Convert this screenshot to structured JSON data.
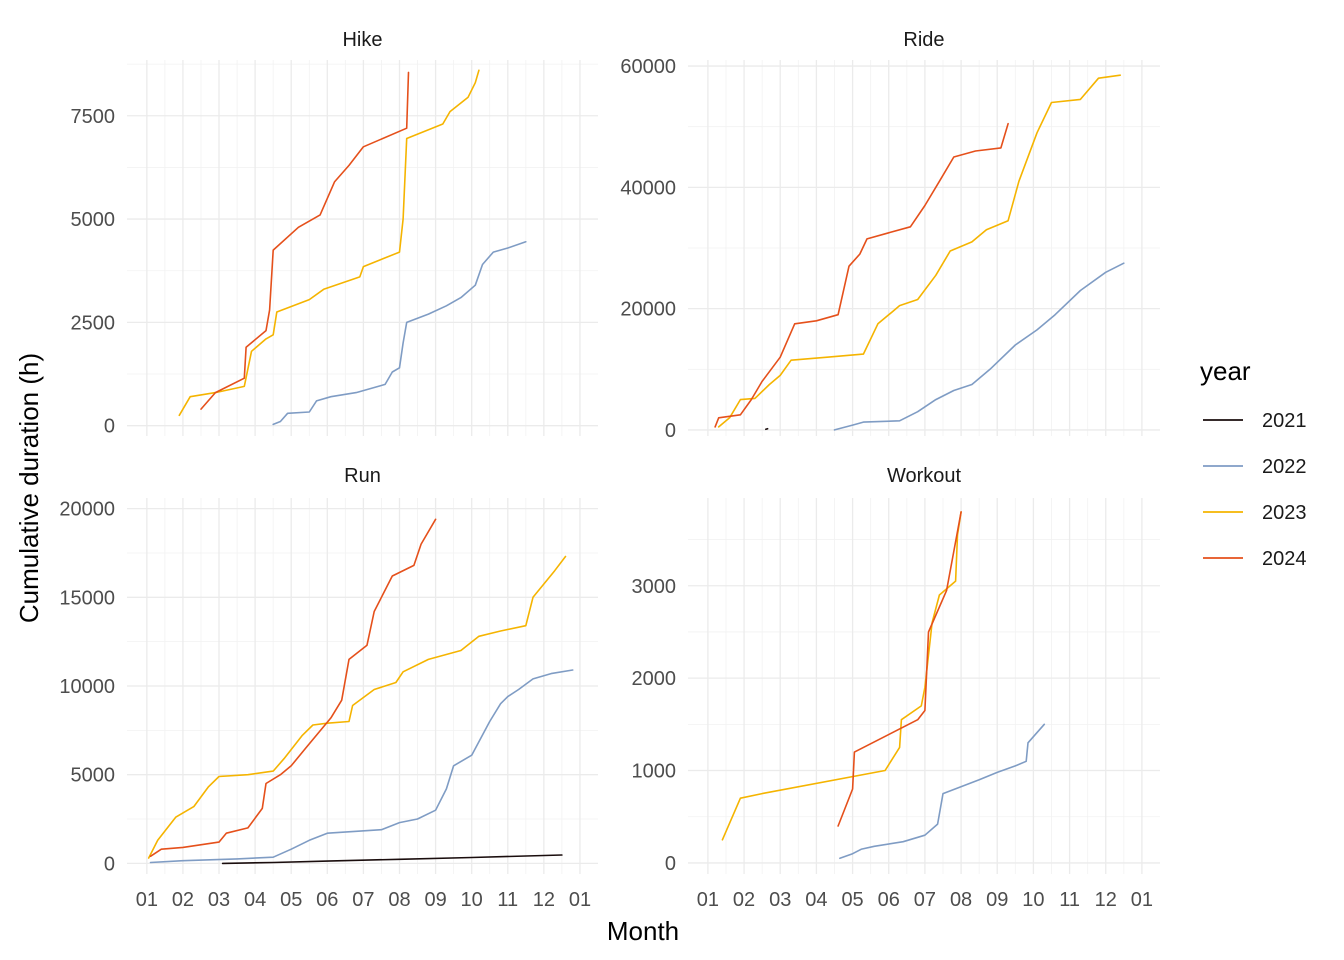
{
  "chart_data": {
    "type": "line",
    "xlabel": "Month",
    "ylabel": "Cumulative duration (h)",
    "x_ticks": [
      "01",
      "02",
      "03",
      "04",
      "05",
      "06",
      "07",
      "08",
      "09",
      "10",
      "11",
      "12",
      "01"
    ],
    "legend": {
      "title": "year",
      "position": "right",
      "items": [
        {
          "name": "2021",
          "color": "#1a0d0d"
        },
        {
          "name": "2022",
          "color": "#7f9cc4"
        },
        {
          "name": "2023",
          "color": "#f5b400"
        },
        {
          "name": "2024",
          "color": "#e5501b"
        }
      ]
    },
    "grid": true,
    "panels": [
      {
        "title": "Hike",
        "ylim": [
          -250,
          8850
        ],
        "y_ticks": [
          0,
          2500,
          5000,
          7500
        ],
        "series": [
          {
            "name": "2022",
            "points": [
              [
                3.5,
                30
              ],
              [
                3.7,
                100
              ],
              [
                3.9,
                300
              ],
              [
                4.5,
                330
              ],
              [
                4.7,
                600
              ],
              [
                5.1,
                700
              ],
              [
                5.8,
                800
              ],
              [
                6.6,
                1000
              ],
              [
                6.8,
                1300
              ],
              [
                7.0,
                1400
              ],
              [
                7.1,
                2000
              ],
              [
                7.2,
                2500
              ],
              [
                7.8,
                2700
              ],
              [
                8.3,
                2900
              ],
              [
                8.7,
                3100
              ],
              [
                9.1,
                3400
              ],
              [
                9.3,
                3900
              ],
              [
                9.6,
                4200
              ],
              [
                10.0,
                4300
              ],
              [
                10.5,
                4450
              ]
            ]
          },
          {
            "name": "2023",
            "points": [
              [
                0.9,
                250
              ],
              [
                1.2,
                700
              ],
              [
                1.9,
                800
              ],
              [
                2.7,
                950
              ],
              [
                2.9,
                1800
              ],
              [
                3.3,
                2100
              ],
              [
                3.5,
                2200
              ],
              [
                3.6,
                2750
              ],
              [
                4.5,
                3050
              ],
              [
                4.9,
                3300
              ],
              [
                5.9,
                3600
              ],
              [
                6.0,
                3850
              ],
              [
                7.0,
                4200
              ],
              [
                7.1,
                5000
              ],
              [
                7.2,
                6950
              ],
              [
                8.2,
                7300
              ],
              [
                8.4,
                7600
              ],
              [
                8.9,
                7950
              ],
              [
                9.1,
                8300
              ],
              [
                9.2,
                8600
              ]
            ]
          },
          {
            "name": "2024",
            "points": [
              [
                1.5,
                400
              ],
              [
                1.9,
                800
              ],
              [
                2.7,
                1150
              ],
              [
                2.75,
                1900
              ],
              [
                3.3,
                2300
              ],
              [
                3.4,
                2800
              ],
              [
                3.5,
                4250
              ],
              [
                4.2,
                4800
              ],
              [
                4.8,
                5100
              ],
              [
                5.2,
                5900
              ],
              [
                5.6,
                6300
              ],
              [
                6.0,
                6750
              ],
              [
                7.2,
                7200
              ],
              [
                7.25,
                8550
              ]
            ]
          }
        ]
      },
      {
        "title": "Ride",
        "ylim": [
          -1000,
          61000
        ],
        "y_ticks": [
          0,
          20000,
          40000,
          60000
        ],
        "series": [
          {
            "name": "2021",
            "points": [
              [
                1.6,
                100
              ],
              [
                1.65,
                200
              ]
            ]
          },
          {
            "name": "2022",
            "points": [
              [
                3.5,
                0
              ],
              [
                4.0,
                800
              ],
              [
                4.3,
                1300
              ],
              [
                5.3,
                1500
              ],
              [
                5.8,
                3000
              ],
              [
                6.3,
                5000
              ],
              [
                6.8,
                6500
              ],
              [
                7.3,
                7500
              ],
              [
                7.8,
                10000
              ],
              [
                8.5,
                14000
              ],
              [
                9.1,
                16500
              ],
              [
                9.6,
                19000
              ],
              [
                10.3,
                23000
              ],
              [
                11.0,
                26000
              ],
              [
                11.5,
                27500
              ]
            ]
          },
          {
            "name": "2023",
            "points": [
              [
                0.3,
                500
              ],
              [
                0.6,
                2000
              ],
              [
                0.9,
                5000
              ],
              [
                1.3,
                5200
              ],
              [
                1.7,
                7500
              ],
              [
                2.0,
                9000
              ],
              [
                2.3,
                11500
              ],
              [
                3.3,
                12000
              ],
              [
                4.3,
                12500
              ],
              [
                4.7,
                17500
              ],
              [
                5.1,
                19500
              ],
              [
                5.3,
                20500
              ],
              [
                5.8,
                21500
              ],
              [
                6.3,
                25500
              ],
              [
                6.7,
                29500
              ],
              [
                7.3,
                31000
              ],
              [
                7.7,
                33000
              ],
              [
                8.3,
                34500
              ],
              [
                8.6,
                41000
              ],
              [
                9.1,
                49000
              ],
              [
                9.5,
                54000
              ],
              [
                10.3,
                54500
              ],
              [
                10.8,
                58000
              ],
              [
                11.4,
                58500
              ]
            ]
          },
          {
            "name": "2024",
            "points": [
              [
                0.2,
                500
              ],
              [
                0.3,
                2000
              ],
              [
                0.9,
                2500
              ],
              [
                1.2,
                5000
              ],
              [
                1.5,
                8000
              ],
              [
                2.0,
                12000
              ],
              [
                2.4,
                17500
              ],
              [
                3.0,
                18000
              ],
              [
                3.6,
                19000
              ],
              [
                3.9,
                27000
              ],
              [
                4.2,
                29000
              ],
              [
                4.4,
                31500
              ],
              [
                5.0,
                32500
              ],
              [
                5.6,
                33500
              ],
              [
                6.0,
                37000
              ],
              [
                6.4,
                41000
              ],
              [
                6.8,
                45000
              ],
              [
                7.4,
                46000
              ],
              [
                8.1,
                46500
              ],
              [
                8.3,
                50500
              ]
            ]
          }
        ]
      },
      {
        "title": "Run",
        "ylim": [
          -600,
          20600
        ],
        "y_ticks": [
          0,
          5000,
          10000,
          15000,
          20000
        ],
        "series": [
          {
            "name": "2021",
            "points": [
              [
                2.1,
                0
              ],
              [
                3.5,
                50
              ],
              [
                5.0,
                130
              ],
              [
                7.0,
                230
              ],
              [
                9.0,
                330
              ],
              [
                11.5,
                470
              ]
            ]
          },
          {
            "name": "2022",
            "points": [
              [
                0.1,
                50
              ],
              [
                1.0,
                150
              ],
              [
                2.5,
                250
              ],
              [
                3.5,
                350
              ],
              [
                4.0,
                800
              ],
              [
                4.5,
                1300
              ],
              [
                5.0,
                1700
              ],
              [
                6.5,
                1900
              ],
              [
                7.0,
                2300
              ],
              [
                7.5,
                2500
              ],
              [
                8.0,
                3000
              ],
              [
                8.3,
                4200
              ],
              [
                8.5,
                5500
              ],
              [
                9.0,
                6100
              ],
              [
                9.5,
                8000
              ],
              [
                9.8,
                9000
              ],
              [
                10.0,
                9400
              ],
              [
                10.3,
                9800
              ],
              [
                10.7,
                10400
              ],
              [
                11.2,
                10700
              ],
              [
                11.8,
                10900
              ]
            ]
          },
          {
            "name": "2023",
            "points": [
              [
                0.05,
                300
              ],
              [
                0.3,
                1300
              ],
              [
                0.8,
                2600
              ],
              [
                1.3,
                3200
              ],
              [
                1.7,
                4300
              ],
              [
                2.0,
                4900
              ],
              [
                2.8,
                5000
              ],
              [
                3.5,
                5200
              ],
              [
                3.8,
                5900
              ],
              [
                4.3,
                7200
              ],
              [
                4.6,
                7800
              ],
              [
                5.0,
                7900
              ],
              [
                5.6,
                8000
              ],
              [
                5.7,
                8900
              ],
              [
                6.3,
                9800
              ],
              [
                6.9,
                10200
              ],
              [
                7.1,
                10800
              ],
              [
                7.8,
                11500
              ],
              [
                8.7,
                12000
              ],
              [
                9.2,
                12800
              ],
              [
                9.8,
                13100
              ],
              [
                10.5,
                13400
              ],
              [
                10.7,
                15000
              ],
              [
                11.3,
                16500
              ],
              [
                11.6,
                17300
              ]
            ]
          },
          {
            "name": "2024",
            "points": [
              [
                0.1,
                400
              ],
              [
                0.4,
                800
              ],
              [
                1.0,
                900
              ],
              [
                2.0,
                1200
              ],
              [
                2.2,
                1700
              ],
              [
                2.8,
                2000
              ],
              [
                3.2,
                3100
              ],
              [
                3.3,
                4500
              ],
              [
                3.7,
                5000
              ],
              [
                4.0,
                5500
              ],
              [
                4.4,
                6500
              ],
              [
                5.1,
                8200
              ],
              [
                5.4,
                9200
              ],
              [
                5.6,
                11500
              ],
              [
                6.1,
                12300
              ],
              [
                6.3,
                14200
              ],
              [
                6.8,
                16200
              ],
              [
                7.4,
                16800
              ],
              [
                7.6,
                18000
              ],
              [
                8.0,
                19400
              ]
            ]
          }
        ]
      },
      {
        "title": "Workout",
        "ylim": [
          -120,
          3950
        ],
        "y_ticks": [
          0,
          1000,
          2000,
          3000
        ],
        "series": [
          {
            "name": "2022",
            "points": [
              [
                3.65,
                50
              ],
              [
                4.0,
                100
              ],
              [
                4.25,
                150
              ],
              [
                4.6,
                180
              ],
              [
                5.4,
                230
              ],
              [
                6.0,
                300
              ],
              [
                6.35,
                420
              ],
              [
                6.5,
                750
              ],
              [
                7.5,
                900
              ],
              [
                8.0,
                980
              ],
              [
                8.5,
                1050
              ],
              [
                8.8,
                1100
              ],
              [
                8.85,
                1300
              ],
              [
                9.3,
                1500
              ]
            ]
          },
          {
            "name": "2023",
            "points": [
              [
                0.4,
                250
              ],
              [
                0.9,
                700
              ],
              [
                1.5,
                750
              ],
              [
                4.9,
                1000
              ],
              [
                5.3,
                1250
              ],
              [
                5.35,
                1550
              ],
              [
                5.9,
                1700
              ],
              [
                6.0,
                1900
              ],
              [
                6.2,
                2600
              ],
              [
                6.4,
                2900
              ],
              [
                6.85,
                3050
              ],
              [
                6.9,
                3550
              ],
              [
                7.0,
                3800
              ]
            ]
          },
          {
            "name": "2024",
            "points": [
              [
                3.6,
                400
              ],
              [
                4.0,
                800
              ],
              [
                4.05,
                1200
              ],
              [
                5.8,
                1550
              ],
              [
                6.0,
                1650
              ],
              [
                6.1,
                2500
              ],
              [
                6.6,
                2950
              ],
              [
                7.0,
                3800
              ]
            ]
          }
        ]
      }
    ]
  }
}
